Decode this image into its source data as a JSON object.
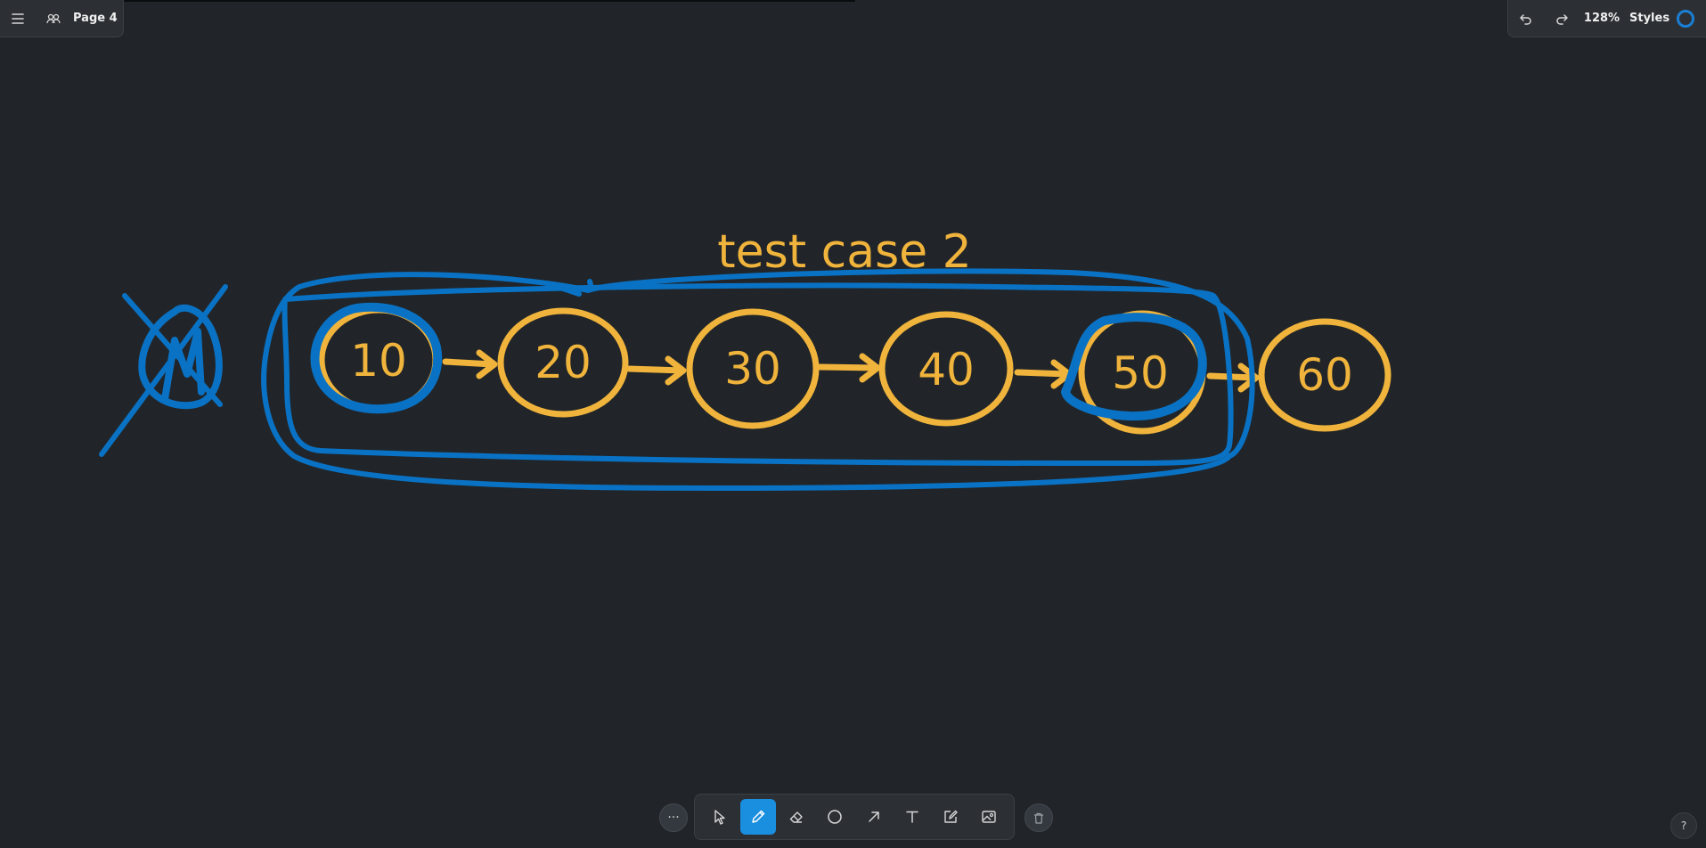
{
  "header": {
    "page_label": "Page 4",
    "zoom": "128%",
    "styles_label": "Styles",
    "current_color": "#1a7fd4"
  },
  "canvas": {
    "title": "test case 2",
    "nodes": [
      "10",
      "20",
      "30",
      "40",
      "50",
      "60"
    ],
    "null_label": "N",
    "node_color": "#f0b43c",
    "marker_color": "#0a72c4"
  },
  "toolbar": {
    "more": "···",
    "tools": [
      "select-tool",
      "draw-tool",
      "eraser-tool",
      "ellipse-tool",
      "arrow-tool",
      "text-tool",
      "note-tool",
      "image-tool"
    ],
    "active_tool": "draw-tool"
  },
  "help_label": "?"
}
